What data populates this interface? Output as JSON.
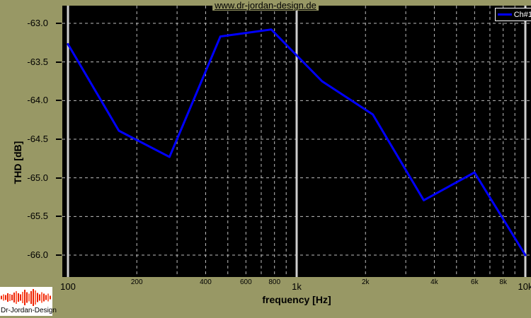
{
  "title": "www.dr-jordan-design.de",
  "legend": {
    "label": "Ch#1"
  },
  "axes": {
    "ylabel": "THD [dB]",
    "xlabel": "frequency [Hz]"
  },
  "logo": {
    "text": "Dr-Jordan-Design",
    "waveform_heights": [
      5,
      9,
      7,
      12,
      10,
      8,
      14,
      18,
      12,
      9,
      16,
      22,
      15,
      11,
      18,
      24,
      20,
      13,
      9,
      15,
      11,
      7,
      11,
      5
    ]
  },
  "colors": {
    "background": "#989865",
    "plot_bg": "#000000",
    "grid": "#bdbdbd",
    "axis_line": "#cfcfcf",
    "series": "#0000ff",
    "text": "#000000",
    "legend_text": "#ffffff",
    "legend_bg": "#000000",
    "legend_border": "#ffffff",
    "logo_bg": "#ffffff",
    "logo_red": "#ee2200",
    "logo_red_light": "#ff6a4a"
  },
  "chart_data": {
    "type": "line",
    "title": "www.dr-jordan-design.de",
    "xlabel": "frequency [Hz]",
    "ylabel": "THD [dB]",
    "xscale": "log",
    "xlim": [
      100,
      10000
    ],
    "ylim": [
      -66.3,
      -62.8
    ],
    "grid": true,
    "legend_position": "top-right",
    "series_name": "Ch#1",
    "x": [
      100,
      167,
      278,
      464,
      774,
      1292,
      2154,
      3594,
      5995,
      10000
    ],
    "y": [
      -63.27,
      -64.39,
      -64.73,
      -63.17,
      -63.08,
      -63.75,
      -64.18,
      -65.29,
      -64.93,
      -66.0
    ],
    "yticks": [
      -63.0,
      -63.5,
      -64.0,
      -64.5,
      -65.0,
      -65.5,
      -66.0
    ],
    "xticks_major": [
      {
        "f": 100,
        "label": "100"
      },
      {
        "f": 1000,
        "label": "1k"
      },
      {
        "f": 10000,
        "label": "10k"
      }
    ],
    "xticks_minor_labeled": [
      {
        "f": 200,
        "label": "200"
      },
      {
        "f": 400,
        "label": "400"
      },
      {
        "f": 600,
        "label": "600"
      },
      {
        "f": 800,
        "label": "800"
      },
      {
        "f": 2000,
        "label": "2k"
      },
      {
        "f": 4000,
        "label": "4k"
      },
      {
        "f": 6000,
        "label": "6k"
      },
      {
        "f": 8000,
        "label": "8k"
      }
    ],
    "grid_minor_freqs": [
      200,
      300,
      400,
      500,
      600,
      700,
      800,
      900,
      2000,
      3000,
      4000,
      5000,
      6000,
      7000,
      8000,
      9000
    ]
  }
}
